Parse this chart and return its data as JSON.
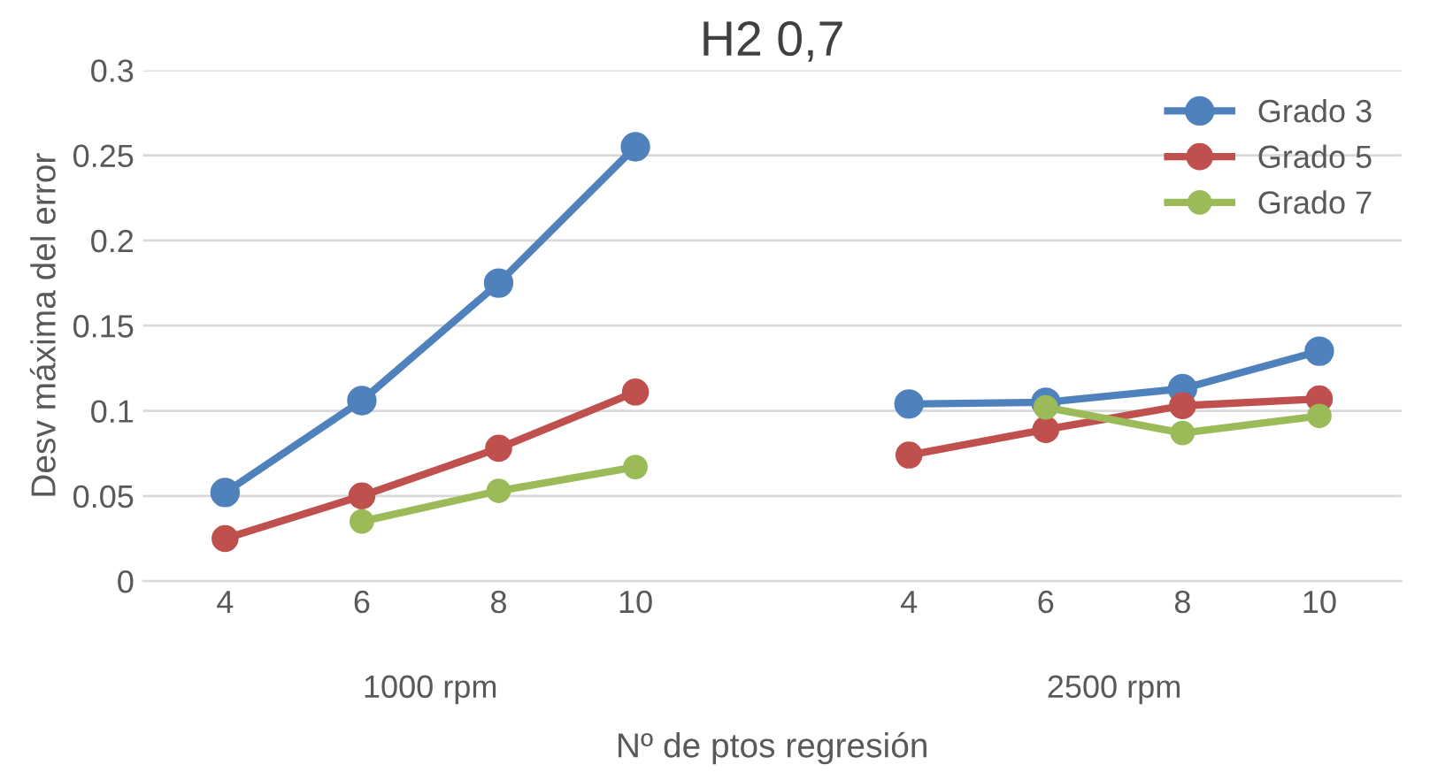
{
  "chart_data": {
    "type": "line",
    "title": "H2 0,7",
    "xlabel": "Nº de ptos regresión",
    "ylabel": "Desv máxima del error",
    "categories": [
      "4",
      "6",
      "8",
      "10",
      null,
      "4",
      "6",
      "8",
      "10"
    ],
    "annotations": [
      "1000 rpm",
      "2500 rpm"
    ],
    "series": [
      {
        "name": "Grado 3",
        "color": "#4f81bd",
        "values": [
          0.052,
          0.106,
          0.175,
          0.255,
          null,
          0.104,
          0.105,
          0.113,
          0.135
        ]
      },
      {
        "name": "Grado 5",
        "color": "#c0504d",
        "values": [
          0.025,
          0.05,
          0.078,
          0.111,
          null,
          0.074,
          0.089,
          0.103,
          0.107
        ]
      },
      {
        "name": "Grado 7",
        "color": "#9bbb59",
        "values": [
          null,
          0.035,
          0.053,
          0.067,
          null,
          null,
          0.102,
          0.087,
          0.097
        ]
      }
    ],
    "ylim": [
      0,
      0.3
    ],
    "yticks": [
      0,
      0.05,
      0.1,
      0.15,
      0.2,
      0.25,
      0.3
    ],
    "grid": "y",
    "legend": "top right",
    "marker": "circle",
    "line_style": "solid"
  }
}
